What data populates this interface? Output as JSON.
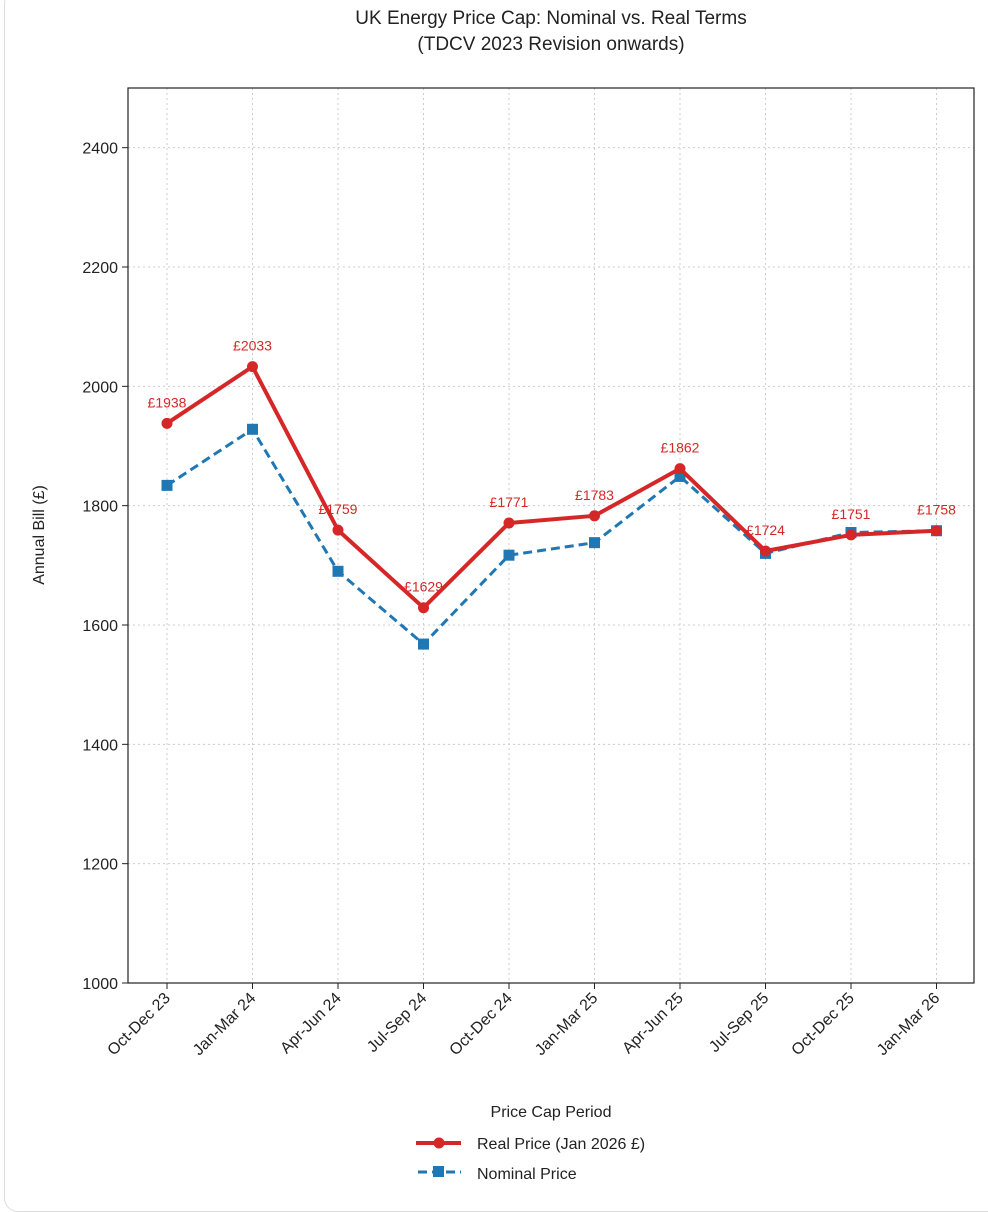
{
  "chart_data": {
    "type": "line",
    "title": "UK Energy Price Cap: Nominal vs. Real Terms",
    "subtitle": "(TDCV 2023 Revision onwards)",
    "xlabel": "Price Cap Period",
    "ylabel": "Annual Bill (£)",
    "ylim": [
      1000,
      2500
    ],
    "yticks": [
      1000,
      1200,
      1400,
      1600,
      1800,
      2000,
      2200,
      2400
    ],
    "grid": true,
    "legend_placement": "bottom-center",
    "categories": [
      "Oct-Dec 23",
      "Jan-Mar 24",
      "Apr-Jun 24",
      "Jul-Sep 24",
      "Oct-Dec 24",
      "Jan-Mar 25",
      "Apr-Jun 25",
      "Jul-Sep 25",
      "Oct-Dec 25",
      "Jan-Mar 26"
    ],
    "series": [
      {
        "name": "Real Price (Jan 2026 £)",
        "color": "#d62728",
        "marker": "circle",
        "linestyle": "solid",
        "values": [
          1938,
          2033,
          1759,
          1629,
          1771,
          1783,
          1862,
          1724,
          1751,
          1758
        ],
        "labels": [
          "£1938",
          "£2033",
          "£1759",
          "£1629",
          "£1771",
          "£1783",
          "£1862",
          "£1724",
          "£1751",
          "£1758"
        ]
      },
      {
        "name": "Nominal Price",
        "color": "#1f77b4",
        "marker": "square",
        "linestyle": "dashed",
        "values": [
          1834,
          1928,
          1690,
          1568,
          1717,
          1738,
          1849,
          1720,
          1755,
          1758
        ]
      }
    ]
  }
}
